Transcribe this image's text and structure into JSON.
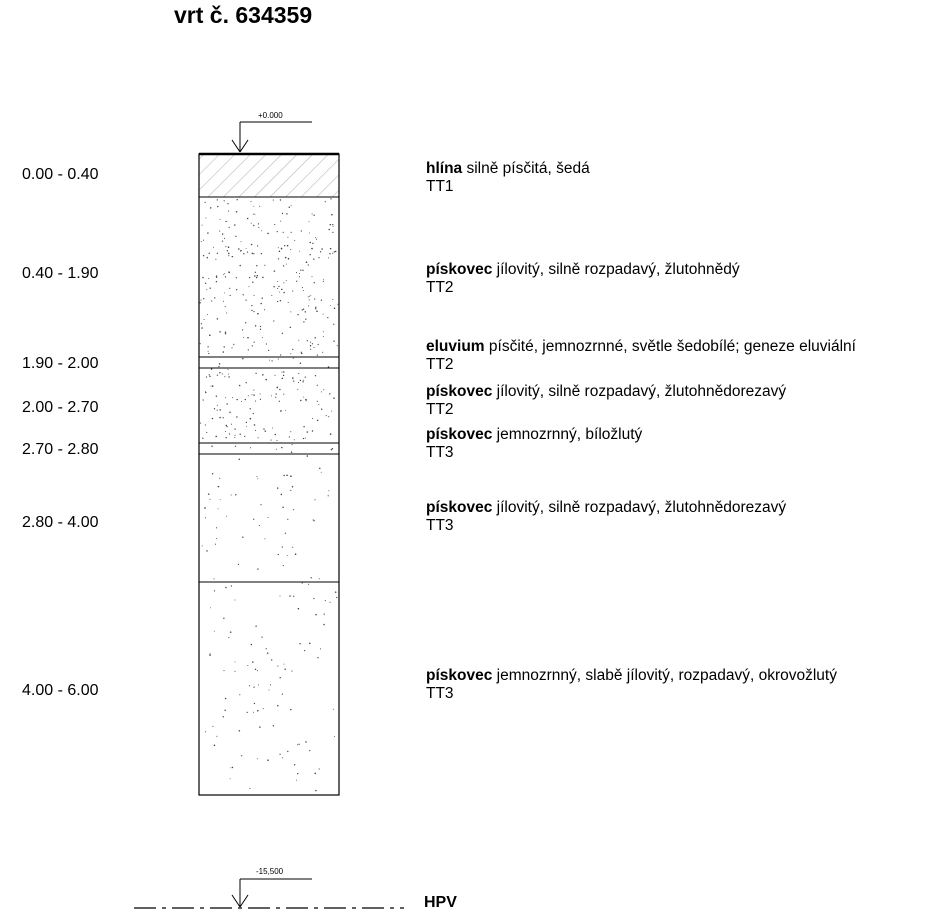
{
  "title": "vrt č. 634359",
  "top_level": "+0.000",
  "water_level": "-15,500",
  "water_label": "HPV",
  "layers": [
    {
      "depth": "0.00 - 0.40",
      "name": "hlína",
      "description": "silně písčitá, šedá",
      "class": "TT1",
      "pattern": "hatch"
    },
    {
      "depth": "0.40 - 1.90",
      "name": "pískovec",
      "description": "jílovitý, silně rozpadavý, žlutohnědý",
      "class": "TT2",
      "pattern": "dense-dots"
    },
    {
      "depth": "1.90 - 2.00",
      "name": "eluvium",
      "description": "písčité, jemnozrnné, světle šedobílé; geneze eluviální",
      "class": "TT2",
      "pattern": "fine-dots"
    },
    {
      "depth": "2.00 - 2.70",
      "name": "pískovec",
      "description": "jílovitý, silně rozpadavý, žlutohnědorezavý",
      "class": "TT2",
      "pattern": "dense-dots"
    },
    {
      "depth": "2.70 - 2.80",
      "name": "pískovec",
      "description": "jemnozrnný, bíložlutý",
      "class": "TT3",
      "pattern": "fine-dots"
    },
    {
      "depth": "2.80 - 4.00",
      "name": "pískovec",
      "description": "jílovitý, silně rozpadavý, žlutohnědorezavý",
      "class": "TT3",
      "pattern": "sparse-dots"
    },
    {
      "depth": "4.00 - 6.00",
      "name": "pískovec",
      "description": "jemnozrnný, slabě jílovitý, rozpadavý, okrovožlutý",
      "class": "TT3",
      "pattern": "sparse-dots"
    }
  ]
}
